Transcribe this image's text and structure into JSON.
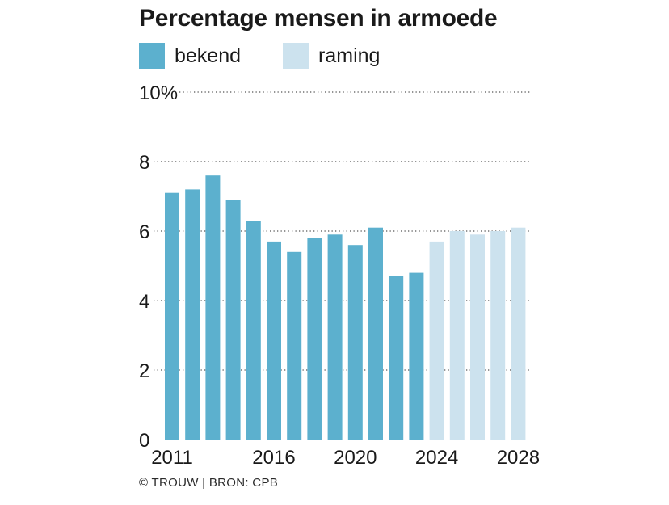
{
  "chart_data": {
    "type": "bar",
    "title": "Percentage mensen in armoede",
    "xlabel": "",
    "ylabel": "",
    "categories": [
      "2011",
      "2012",
      "2013",
      "2014",
      "2015",
      "2016",
      "2017",
      "2018",
      "2019",
      "2020",
      "2021",
      "2022",
      "2023",
      "2024",
      "2025",
      "2026",
      "2027",
      "2028"
    ],
    "values": [
      7.1,
      7.2,
      7.6,
      6.9,
      6.3,
      5.7,
      5.4,
      5.8,
      5.9,
      5.6,
      6.1,
      4.7,
      4.8,
      5.7,
      6.0,
      5.9,
      6.0,
      6.1
    ],
    "status": [
      "bekend",
      "bekend",
      "bekend",
      "bekend",
      "bekend",
      "bekend",
      "bekend",
      "bekend",
      "bekend",
      "bekend",
      "bekend",
      "bekend",
      "bekend",
      "raming",
      "raming",
      "raming",
      "raming",
      "raming"
    ],
    "ylim": [
      0,
      10
    ],
    "y_ticks": [
      {
        "value": 0,
        "label": "0"
      },
      {
        "value": 2,
        "label": "2"
      },
      {
        "value": 4,
        "label": "4"
      },
      {
        "value": 6,
        "label": "6"
      },
      {
        "value": 8,
        "label": "8"
      },
      {
        "value": 10,
        "label": "10%"
      }
    ],
    "x_tick_labels": [
      "2011",
      "2016",
      "2020",
      "2024",
      "2028"
    ],
    "grid": "dotted horizontal",
    "legend": [
      {
        "key": "bekend",
        "label": "bekend",
        "color": "#5cb0ce"
      },
      {
        "key": "raming",
        "label": "raming",
        "color": "#cce2ee"
      }
    ],
    "legend_position": "top-left"
  },
  "source": "© TROUW | BRON: CPB"
}
